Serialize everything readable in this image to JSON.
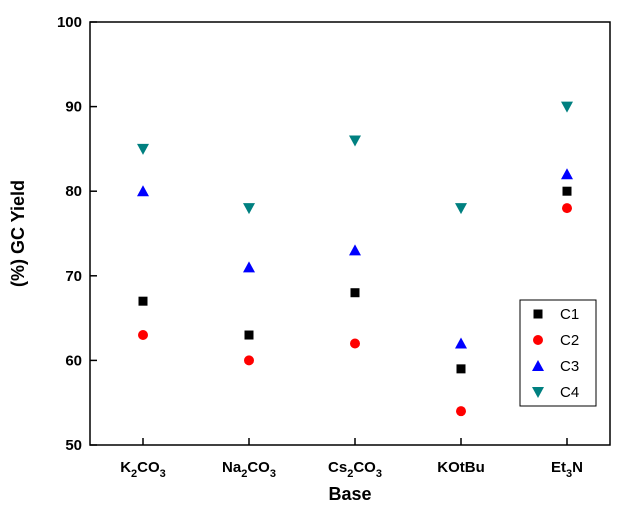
{
  "chart_data": {
    "type": "scatter",
    "title": "",
    "xlabel": "Base",
    "ylabel": "(%) GC Yield",
    "categories": [
      {
        "base": "K",
        "sub": "2",
        "tail": "CO",
        "sub2": "3"
      },
      {
        "base": "Na",
        "sub": "2",
        "tail": "CO",
        "sub2": "3"
      },
      {
        "base": "Cs",
        "sub": "2",
        "tail": "CO",
        "sub2": "3"
      },
      {
        "base": "KOtBu",
        "sub": "",
        "tail": "",
        "sub2": ""
      },
      {
        "base": "Et",
        "sub": "3",
        "tail": "N",
        "sub2": ""
      }
    ],
    "ylim": [
      50,
      100
    ],
    "yticks": [
      50,
      60,
      70,
      80,
      90,
      100
    ],
    "grid": false,
    "legend_position": "right",
    "series": [
      {
        "name": "C1",
        "marker": "square",
        "color": "#000000",
        "values": [
          67,
          63,
          68,
          59,
          80
        ]
      },
      {
        "name": "C2",
        "marker": "circle",
        "color": "#ff0000",
        "values": [
          63,
          60,
          62,
          54,
          78
        ]
      },
      {
        "name": "C3",
        "marker": "triangle-up",
        "color": "#0000ff",
        "values": [
          80,
          71,
          73,
          62,
          82
        ]
      },
      {
        "name": "C4",
        "marker": "triangle-down",
        "color": "#008080",
        "values": [
          85,
          78,
          86,
          78,
          90
        ]
      }
    ]
  }
}
